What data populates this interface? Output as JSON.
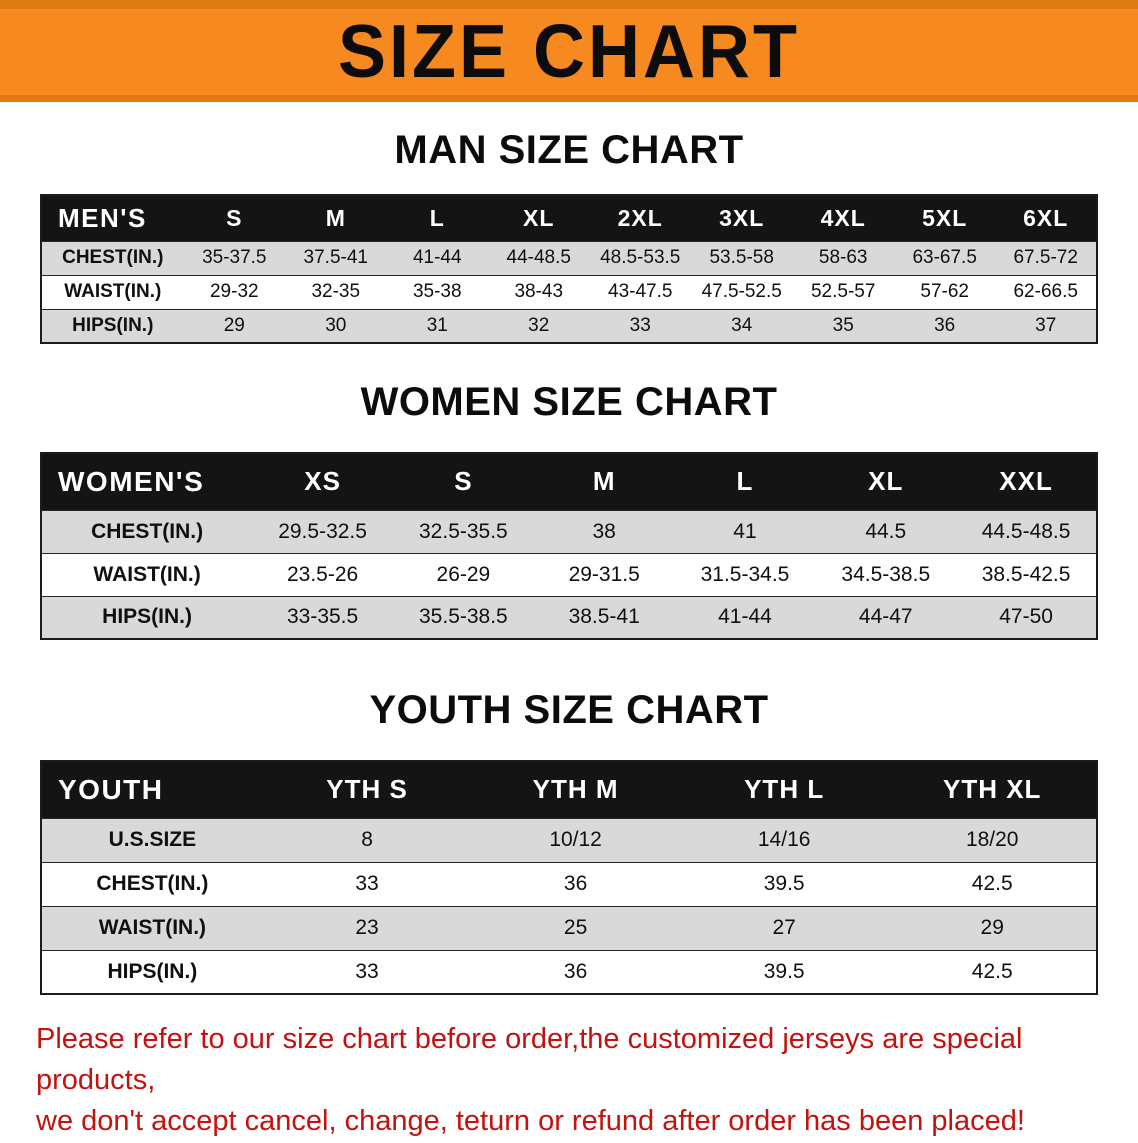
{
  "banner": {
    "title": "SIZE CHART"
  },
  "colors": {
    "banner_bg": "#F6891F",
    "banner_edge": "#DF7B10",
    "header_bg": "#141414",
    "row_gray": "#D9D9D9",
    "footer_red": "#C3130F"
  },
  "sections": [
    {
      "id": "men",
      "heading": "MAN SIZE CHART",
      "table": {
        "header": [
          "MEN'S",
          "S",
          "M",
          "L",
          "XL",
          "2XL",
          "3XL",
          "4XL",
          "5XL",
          "6XL"
        ],
        "rows": [
          {
            "label": "CHEST(IN.)",
            "values": [
              "35-37.5",
              "37.5-41",
              "41-44",
              "44-48.5",
              "48.5-53.5",
              "53.5-58",
              "58-63",
              "63-67.5",
              "67.5-72"
            ]
          },
          {
            "label": "WAIST(IN.)",
            "values": [
              "29-32",
              "32-35",
              "35-38",
              "38-43",
              "43-47.5",
              "47.5-52.5",
              "52.5-57",
              "57-62",
              "62-66.5"
            ]
          },
          {
            "label": "HIPS(IN.)",
            "values": [
              "29",
              "30",
              "31",
              "32",
              "33",
              "34",
              "35",
              "36",
              "37"
            ]
          }
        ]
      }
    },
    {
      "id": "women",
      "heading": "WOMEN SIZE CHART",
      "table": {
        "header": [
          "WOMEN'S",
          "XS",
          "S",
          "M",
          "L",
          "XL",
          "XXL"
        ],
        "rows": [
          {
            "label": "CHEST(IN.)",
            "values": [
              "29.5-32.5",
              "32.5-35.5",
              "38",
              "41",
              "44.5",
              "44.5-48.5"
            ]
          },
          {
            "label": "WAIST(IN.)",
            "values": [
              "23.5-26",
              "26-29",
              "29-31.5",
              "31.5-34.5",
              "34.5-38.5",
              "38.5-42.5"
            ]
          },
          {
            "label": "HIPS(IN.)",
            "values": [
              "33-35.5",
              "35.5-38.5",
              "38.5-41",
              "41-44",
              "44-47",
              "47-50"
            ]
          }
        ]
      }
    },
    {
      "id": "youth",
      "heading": "YOUTH SIZE CHART",
      "table": {
        "header": [
          "YOUTH",
          "YTH S",
          "YTH M",
          "YTH L",
          "YTH XL"
        ],
        "rows": [
          {
            "label": "U.S.SIZE",
            "values": [
              "8",
              "10/12",
              "14/16",
              "18/20"
            ]
          },
          {
            "label": "CHEST(IN.)",
            "values": [
              "33",
              "36",
              "39.5",
              "42.5"
            ]
          },
          {
            "label": "WAIST(IN.)",
            "values": [
              "23",
              "25",
              "27",
              "29"
            ]
          },
          {
            "label": "HIPS(IN.)",
            "values": [
              "33",
              "36",
              "39.5",
              "42.5"
            ]
          }
        ]
      }
    }
  ],
  "footer": {
    "lines": [
      "Please refer to our size chart before order,the customized jerseys are special products,",
      "we don't accept cancel, change, teturn or refund after order has been placed!"
    ]
  }
}
